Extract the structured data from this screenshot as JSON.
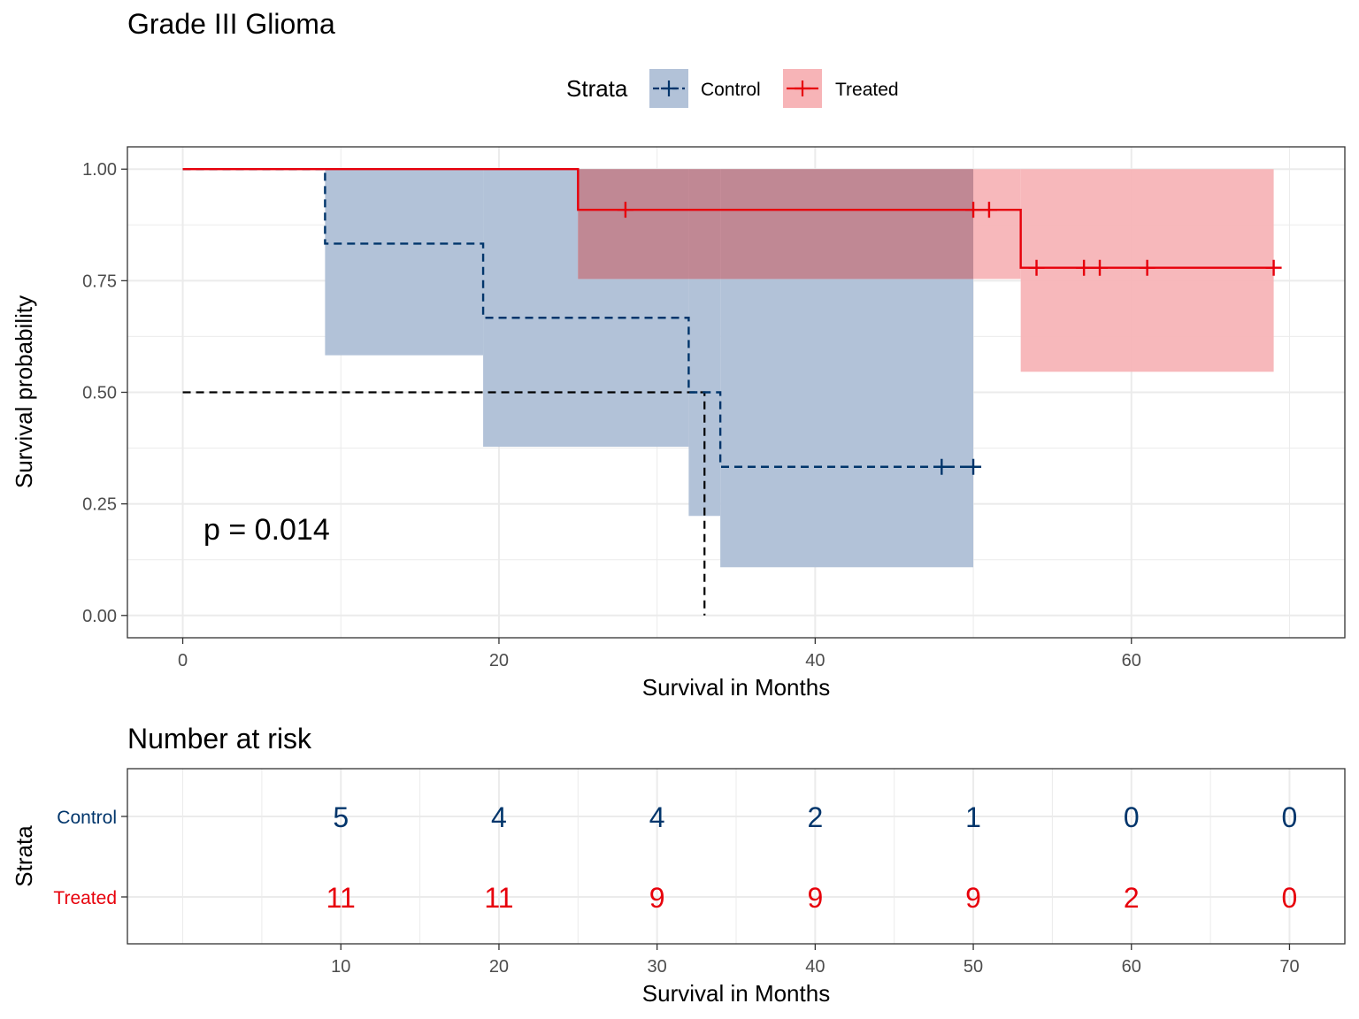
{
  "colors": {
    "control": "#00356B",
    "treated": "#E7000B",
    "control_fill": "#B2C2D8",
    "treated_fill": "#F7B4B7",
    "overlap_fill": "#C08894",
    "grid": "#EBEBEB",
    "axis_text": "#4D4D4D"
  },
  "chart_data": [
    {
      "type": "line",
      "subtype": "kaplan-meier",
      "title": "Grade III Glioma",
      "xlabel": "Survival in Months",
      "ylabel": "Survival probability",
      "xlim": [
        -3.5,
        73.5
      ],
      "ylim": [
        -0.05,
        1.05
      ],
      "x_ticks": [
        0,
        20,
        40,
        60
      ],
      "x_tick_labels": [
        "0",
        "20",
        "40",
        "60"
      ],
      "y_ticks": [
        0,
        0.25,
        0.5,
        0.75,
        1
      ],
      "y_tick_labels": [
        "0.00",
        "0.25",
        "0.50",
        "0.75",
        "1.00"
      ],
      "grid": true,
      "legend": {
        "title": "Strata",
        "position": "top",
        "entries": [
          "Control",
          "Treated"
        ]
      },
      "annotation": "p = 0.014",
      "median_line": {
        "y": 0.5,
        "x": 33
      },
      "series": [
        {
          "name": "Control",
          "line_style": "dashed",
          "steps": [
            {
              "x": 0,
              "surv": 1.0,
              "lower": 1.0,
              "upper": 1.0
            },
            {
              "x": 9,
              "surv": 0.833,
              "lower": 0.583,
              "upper": 1.0
            },
            {
              "x": 19,
              "surv": 0.667,
              "lower": 0.378,
              "upper": 1.0
            },
            {
              "x": 32,
              "surv": 0.5,
              "lower": 0.223,
              "upper": 1.0
            },
            {
              "x": 34,
              "surv": 0.333,
              "lower": 0.108,
              "upper": 1.0
            }
          ],
          "end_x": 50,
          "censored": [
            48,
            50
          ]
        },
        {
          "name": "Treated",
          "line_style": "solid",
          "steps": [
            {
              "x": 0,
              "surv": 1.0,
              "lower": 1.0,
              "upper": 1.0
            },
            {
              "x": 25,
              "surv": 0.909,
              "lower": 0.754,
              "upper": 1.0
            },
            {
              "x": 53,
              "surv": 0.779,
              "lower": 0.546,
              "upper": 1.0
            }
          ],
          "end_x": 69,
          "censored": [
            28,
            50,
            51,
            54,
            57,
            58,
            61,
            69
          ]
        }
      ]
    },
    {
      "type": "table",
      "title": "Number at risk",
      "xlabel": "Survival in Months",
      "ylabel": "Strata",
      "xlim": [
        -3.5,
        73.5
      ],
      "x_ticks": [
        10,
        20,
        30,
        40,
        50,
        60,
        70
      ],
      "x_tick_labels": [
        "10",
        "20",
        "30",
        "40",
        "50",
        "60",
        "70"
      ],
      "rows": [
        {
          "name": "Control",
          "values": [
            5,
            4,
            4,
            2,
            1,
            0,
            0
          ]
        },
        {
          "name": "Treated",
          "values": [
            11,
            11,
            9,
            9,
            9,
            2,
            0
          ]
        }
      ]
    }
  ]
}
